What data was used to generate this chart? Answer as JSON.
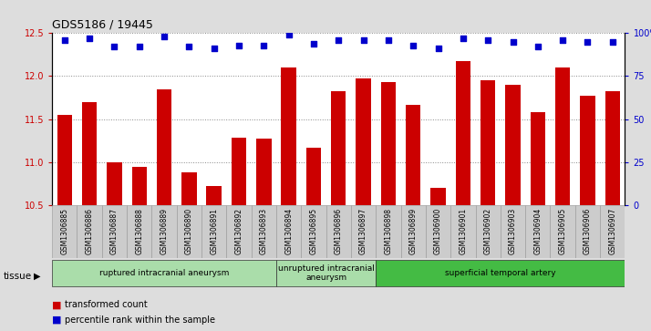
{
  "title": "GDS5186 / 19445",
  "samples": [
    "GSM1306885",
    "GSM1306886",
    "GSM1306887",
    "GSM1306888",
    "GSM1306889",
    "GSM1306890",
    "GSM1306891",
    "GSM1306892",
    "GSM1306893",
    "GSM1306894",
    "GSM1306895",
    "GSM1306896",
    "GSM1306897",
    "GSM1306898",
    "GSM1306899",
    "GSM1306900",
    "GSM1306901",
    "GSM1306902",
    "GSM1306903",
    "GSM1306904",
    "GSM1306905",
    "GSM1306906",
    "GSM1306907"
  ],
  "bar_values": [
    11.55,
    11.7,
    11.0,
    10.95,
    11.85,
    10.88,
    10.72,
    11.28,
    11.27,
    12.1,
    11.17,
    11.82,
    11.97,
    11.93,
    11.67,
    10.7,
    12.18,
    11.95,
    11.9,
    11.58,
    12.1,
    11.77,
    11.82
  ],
  "dot_values": [
    96,
    97,
    92,
    92,
    98,
    92,
    91,
    93,
    93,
    99,
    94,
    96,
    96,
    96,
    93,
    91,
    97,
    96,
    95,
    92,
    96,
    95,
    95
  ],
  "bar_color": "#cc0000",
  "dot_color": "#0000cc",
  "ylim_left": [
    10.5,
    12.5
  ],
  "ylim_right": [
    0,
    100
  ],
  "yticks_left": [
    10.5,
    11.0,
    11.5,
    12.0,
    12.5
  ],
  "yticks_right": [
    0,
    25,
    50,
    75,
    100
  ],
  "ytick_labels_right": [
    "0",
    "25",
    "50",
    "75",
    "100%"
  ],
  "group_defs": [
    {
      "start": 0,
      "end": 8,
      "color": "#aaddaa",
      "label": "ruptured intracranial aneurysm"
    },
    {
      "start": 9,
      "end": 12,
      "color": "#aaddaa",
      "label": "unruptured intracranial\naneurysm"
    },
    {
      "start": 13,
      "end": 22,
      "color": "#44bb44",
      "label": "superficial temporal artery"
    }
  ],
  "tissue_label": "tissue",
  "legend_bar_label": "transformed count",
  "legend_dot_label": "percentile rank within the sample",
  "background_color": "#dddddd",
  "plot_bg_color": "#ffffff",
  "grid_color": "#888888",
  "xlabel_bg_color": "#cccccc",
  "xlabel_border_color": "#999999"
}
